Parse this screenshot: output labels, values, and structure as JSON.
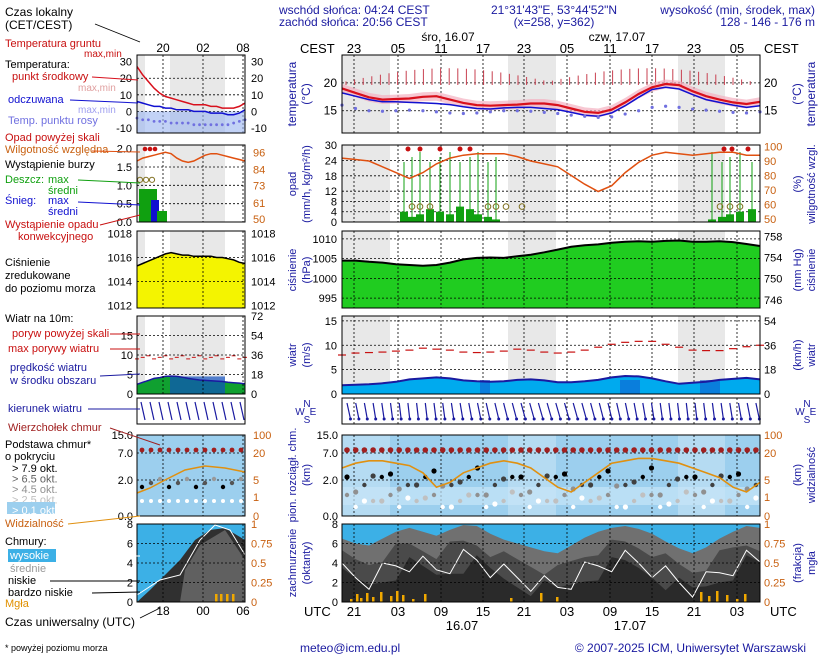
{
  "header": {
    "sunrise": "wschód słońca: 04:24 CEST",
    "sunset": "zachód słońca: 20:56 CEST",
    "coords": "21°31'43\"E, 53°44'52\"N",
    "grid": "(x=258, y=362)",
    "elev_title": "wysokość (min, środek, max)",
    "elev_values": "128 - 146 - 176 m"
  },
  "footer": {
    "email": "meteo@icm.edu.pl",
    "copyright": "© 2007-2025 ICM, Uniwersytet Warszawski",
    "note": "* powyżej poziomu morza"
  },
  "time": {
    "cest_label": "CEST",
    "utc_label": "UTC",
    "legend_local": [
      "Czas lokalny",
      "(CET/CEST)"
    ],
    "legend_utc": "Czas uniwersalny (UTC)",
    "day1": "śro, 16.07",
    "day2": "czw, 17.07",
    "day1_bottom": "16.07",
    "day2_bottom": "17.07",
    "top_ticks": [
      "23",
      "05",
      "11",
      "17",
      "23",
      "05",
      "11",
      "17",
      "23",
      "05"
    ],
    "bottom_ticks": [
      "21",
      "03",
      "09",
      "15",
      "21",
      "03",
      "09",
      "15",
      "21",
      "03"
    ],
    "legend_top_ticks": [
      "20",
      "02",
      "08"
    ],
    "legend_bottom_ticks": [
      "18",
      "00",
      "06"
    ]
  },
  "legend": {
    "temp_ground": "Temperatura gruntu",
    "temp_ground_sub": "max,min",
    "temp_label": "Temperatura:",
    "temp_mid": "punkt środkowy",
    "temp_mid_sub": "max,min",
    "temp_feel": "odczuwana",
    "temp_feel_sub": "max,min",
    "temp_dew": "Temp. punktu rosy",
    "precip_above": "Opad powyżej skali",
    "humidity": "Wilgotność względna",
    "storm": "Wystąpienie burzy",
    "rain": "Deszcz:",
    "rain_max": "max",
    "rain_mid": "średni",
    "snow": "Śnieg:",
    "snow_max": "max",
    "snow_mid": "średni",
    "conv1": "Wystąpienie opadu",
    "conv2": "konwekcyjnego",
    "pres1": "Ciśnienie",
    "pres2": "zredukowane",
    "pres3": "do poziomu morza",
    "wind_title": "Wiatr na 10m:",
    "gust_above": "poryw powyżej skali",
    "gust_max": "max porywy wiatru",
    "wind_speed1": "prędkość wiatru",
    "wind_speed2": "w środku obszaru",
    "wind_dir": "kierunek wiatru",
    "cirrus": "Wierzchołek chmur",
    "cloud_base1": "Podstawa chmur*",
    "cloud_base2": "o pokryciu",
    "okt": [
      "> 7.9 okt.",
      "> 6.5 okt.",
      "> 4.5 okt.",
      "> 2.5 okt.",
      "> 0.1 okt."
    ],
    "visibility": "Widzialność",
    "clouds": "Chmury:",
    "cl_high": "wysokie",
    "cl_mid": "średnie",
    "cl_low": "niskie",
    "cl_vlow": "bardzo niskie",
    "fog": "Mgła"
  },
  "axes": {
    "temp_left": "temperatura",
    "temp_left2": "(°C)",
    "temp_right": "temperatura",
    "temp_right2": "(°C)",
    "precip_left": "opad",
    "precip_left2": "(mm/h, kg/m²/h)",
    "precip_right": "wilgotność wzgl.",
    "precip_right2": "(%)",
    "pres_left": "ciśnienie",
    "pres_left2": "(hPa)",
    "pres_right": "ciśnienie",
    "pres_right2": "(mm Hg)",
    "wind_left": "wiatr",
    "wind_left2": "(m/s)",
    "wind_right": "wiatr",
    "wind_right2": "(km/h)",
    "dir_letters": [
      "N",
      "W",
      "E",
      "S"
    ],
    "cloud_left": "pion. rozciągł. chm.",
    "cloud_left2": "(km)",
    "cloud_right": "widzialność",
    "cloud_right2": "(km)",
    "cover_left": "zachmurzenie",
    "cover_left2": "(oktanty)",
    "cover_right": "mgła",
    "cover_right2": "(frakcja)"
  },
  "ticks": {
    "temp": [
      "20",
      "15"
    ],
    "temp_legend": [
      "30",
      "20",
      "10",
      "0",
      "-10"
    ],
    "precip": [
      "30",
      "24",
      "18",
      "12",
      "8",
      "4",
      "0"
    ],
    "humidity": [
      "100",
      "90",
      "80",
      "70",
      "60",
      "50"
    ],
    "precip_legend": [
      "2.0",
      "1.5",
      "1.0",
      "0.5",
      "0.0"
    ],
    "humidity_legend": [
      "96",
      "84",
      "73",
      "61",
      "50"
    ],
    "pres": [
      "1010",
      "1005",
      "1000",
      "995"
    ],
    "pres_mm": [
      "758",
      "754",
      "750",
      "746"
    ],
    "pres_legend": [
      "1018",
      "1016",
      "1014",
      "1012"
    ],
    "wind": [
      "15",
      "10",
      "5",
      "0"
    ],
    "wind_kmh": [
      "54",
      "36",
      "18",
      "0"
    ],
    "wind_legend_r": [
      "72",
      "54",
      "36",
      "18",
      "0"
    ],
    "wind_legend_l": [
      "20",
      "15",
      "10",
      "5",
      "0"
    ],
    "cloud_km": [
      "15.0",
      "7.0",
      "2.0",
      "0.0"
    ],
    "vis_km": [
      "100",
      "20",
      "5",
      "1",
      "0"
    ],
    "cloud_legend": [
      "15.0",
      "7.0",
      "2.0",
      "0.0"
    ],
    "cover": [
      "8",
      "6",
      "4",
      "2",
      "0"
    ],
    "fog_frac": [
      "1",
      "0.75",
      "0.5",
      "0.25",
      "0"
    ]
  },
  "colors": {
    "temp_mid": "#d8101c",
    "temp_feel": "#1010d0",
    "dew": "#7070e0",
    "humidity": "#e05010",
    "rain": "#10a010",
    "pressure_fill": "#20cc20",
    "pressure_legend_fill": "#f4f400",
    "gust": "#c81010",
    "wind_fill": "#00aaee",
    "wind_dir": "#1a1aa0",
    "cloud_bg": "#9ccfee",
    "vis": "#e09010",
    "cover_bg": "#3cb0e6",
    "fog": "#f0a800",
    "night": "#e8e8e8"
  },
  "chart_data": {
    "type": "line",
    "x_labels_utc": [
      "21",
      "03",
      "09",
      "15",
      "21",
      "03",
      "09",
      "15",
      "21",
      "03"
    ],
    "series": [
      {
        "name": "punkt środkowy",
        "unit": "°C",
        "values": [
          19.0,
          18.2,
          17.4,
          17.0,
          17.1,
          17.2,
          17.5,
          17.6,
          17.0,
          16.4,
          16.0,
          15.9,
          16.0,
          16.1,
          16.3,
          16.3,
          16.0,
          15.4,
          14.8,
          14.6,
          15.2,
          16.5,
          18.0,
          19.2,
          19.8,
          19.6,
          18.5,
          17.6,
          17.0,
          16.5,
          16.2,
          16.6
        ]
      },
      {
        "name": "odczuwana",
        "unit": "°C",
        "values": [
          18.2,
          17.6,
          17.0,
          16.6,
          16.6,
          16.5,
          16.4,
          16.3,
          16.1,
          15.7,
          15.4,
          15.3,
          15.5,
          15.6,
          15.6,
          15.4,
          15.2,
          14.7,
          14.2,
          14.0,
          14.6,
          15.9,
          17.4,
          18.8,
          19.2,
          18.9,
          17.9,
          17.0,
          16.5,
          16.0,
          15.6,
          15.9
        ]
      },
      {
        "name": "Temp. punktu rosy",
        "unit": "°C",
        "values": [
          16.0,
          15.4,
          15.0,
          14.9,
          15.0,
          15.1,
          15.0,
          14.8,
          14.6,
          14.5,
          14.6,
          14.8,
          15.0,
          15.0,
          14.9,
          14.7,
          14.5,
          14.2,
          14.0,
          13.8,
          13.9,
          14.4,
          15.0,
          15.6,
          15.8,
          15.6,
          15.3,
          15.1,
          14.9,
          14.7,
          14.6,
          14.8
        ]
      },
      {
        "name": "Wilgotność względna",
        "unit": "%",
        "values": [
          92,
          91,
          90,
          86,
          82,
          78,
          82,
          88,
          92,
          94,
          95,
          95,
          95,
          93,
          90,
          88,
          86,
          80,
          74,
          69,
          73,
          82,
          89,
          94,
          96,
          95,
          94,
          95,
          96,
          96,
          94,
          94
        ]
      },
      {
        "name": "Ciśnienie",
        "unit": "hPa",
        "values": [
          1004.5,
          1004.5,
          1004.2,
          1004.0,
          1003.6,
          1003.4,
          1003.2,
          1003.4,
          1004.0,
          1004.8,
          1005.2,
          1005.3,
          1005.2,
          1005.6,
          1006.0,
          1006.6,
          1007.3,
          1008.0,
          1008.4,
          1008.6,
          1009.0,
          1009.3,
          1009.4,
          1009.3,
          1009.5,
          1009.6,
          1009.3,
          1009.3,
          1009.4,
          1009.2,
          1008.7,
          1008.2
        ]
      },
      {
        "name": "prędkość wiatru",
        "unit": "m/s",
        "values": [
          1.8,
          1.9,
          2.0,
          2.2,
          2.5,
          3.0,
          3.2,
          3.4,
          3.2,
          2.8,
          2.6,
          2.5,
          2.6,
          2.9,
          3.0,
          2.8,
          2.4,
          2.4,
          2.6,
          2.9,
          3.4,
          3.7,
          3.6,
          3.2,
          2.6,
          2.1,
          2.3,
          2.5,
          2.9,
          3.1,
          3.3,
          3.0
        ]
      },
      {
        "name": "max porywy wiatru",
        "unit": "m/s",
        "values": [
          8.0,
          8.4,
          8.5,
          8.6,
          8.8,
          9.0,
          9.4,
          9.2,
          9.0,
          8.6,
          8.5,
          8.6,
          8.8,
          9.2,
          9.0,
          8.6,
          8.4,
          8.6,
          9.0,
          9.6,
          10.2,
          10.6,
          10.8,
          10.8,
          10.2,
          9.6,
          9.0,
          8.9,
          8.9,
          9.3,
          9.7,
          10.0
        ]
      }
    ]
  }
}
